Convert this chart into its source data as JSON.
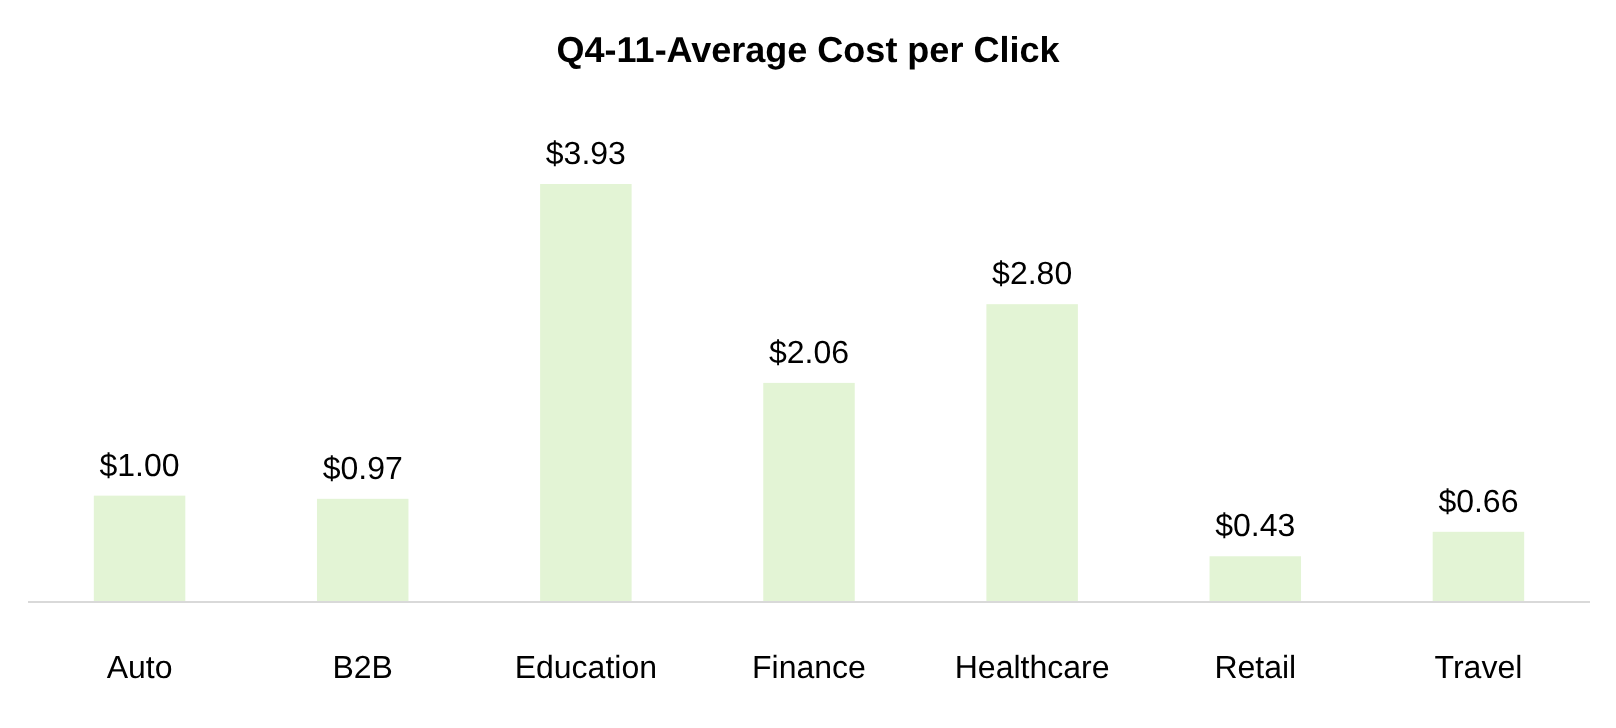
{
  "chart_data": {
    "type": "bar",
    "title": "Q4-11-Average Cost per Click",
    "categories": [
      "Auto",
      "B2B",
      "Education",
      "Finance",
      "Healthcare",
      "Retail",
      "Travel"
    ],
    "values": [
      1.0,
      0.97,
      3.93,
      2.06,
      2.8,
      0.43,
      0.66
    ],
    "value_labels": [
      "$1.00",
      "$0.97",
      "$3.93",
      "$2.06",
      "$2.80",
      "$0.43",
      "$0.66"
    ],
    "color": "#e3f4d5"
  }
}
